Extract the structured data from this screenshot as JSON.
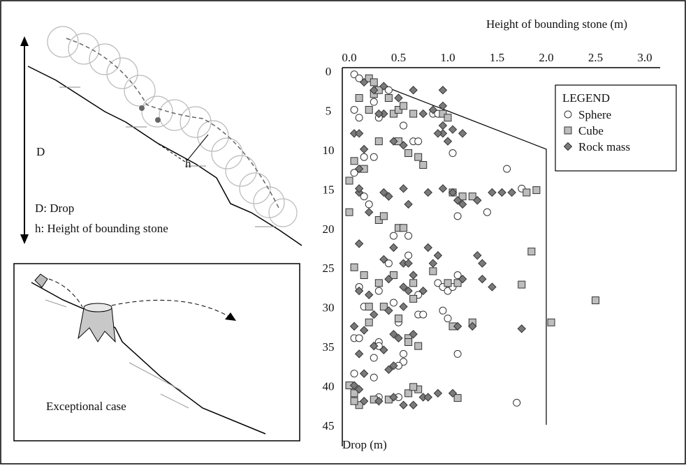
{
  "chart_data": {
    "type": "scatter",
    "x_label": "Height of bounding stone (m)",
    "y_label": "Drop (m)",
    "xlim": [
      0,
      3
    ],
    "ylim": [
      0,
      45
    ],
    "y_inverted": true,
    "xticks": [
      {
        "value": 0,
        "label": "0.0"
      },
      0.5,
      {
        "value": 1,
        "label": "1.0"
      },
      1.5,
      {
        "value": 2,
        "label": "2.0"
      },
      2.5,
      {
        "value": 3,
        "label": "3.0"
      }
    ],
    "yticks": [
      0,
      5,
      10,
      15,
      20,
      25,
      30,
      35,
      40,
      45
    ],
    "legend_title": "LEGEND",
    "envelope": {
      "x": [
        0.35,
        2.0,
        2.0
      ],
      "y": [
        2,
        10,
        45
      ]
    },
    "series": [
      {
        "name": "Sphere",
        "marker": "circle",
        "color": "#ffffff",
        "x": [
          0.05,
          0.1,
          0.05,
          0.1,
          0.25,
          0.3,
          0.4,
          0.55,
          0.65,
          0.7,
          0.85,
          0.9,
          0.05,
          0.15,
          0.25,
          1.05,
          1.6,
          1.75,
          1.4,
          1.1,
          0.15,
          0.2,
          0.45,
          0.6,
          0.4,
          0.6,
          0.1,
          0.3,
          0.15,
          0.45,
          0.5,
          0.7,
          0.75,
          0.9,
          0.95,
          1.0,
          1.05,
          0.7,
          0.95,
          1.0,
          1.1,
          1.1,
          0.05,
          0.1,
          0.3,
          0.3,
          0.6,
          0.55,
          0.55,
          0.5,
          0.25,
          0.05,
          0.3,
          0.5,
          0.6,
          1.7,
          0.25
        ],
        "y": [
          0.5,
          1,
          5,
          6,
          4,
          6,
          2.5,
          7,
          9,
          9,
          5.5,
          5.5,
          13,
          11,
          11,
          10.5,
          12.5,
          15,
          18,
          18.5,
          16,
          17,
          21,
          21,
          24.5,
          23.5,
          27.5,
          28,
          30,
          29.5,
          32,
          31,
          31,
          27,
          27.5,
          28,
          27.5,
          28.5,
          30.5,
          31.5,
          26,
          36,
          34,
          34,
          34.5,
          35,
          34,
          36,
          37,
          37.5,
          39,
          38.5,
          41.5,
          41.5,
          41,
          42.2,
          36.5
        ]
      },
      {
        "name": "Cube",
        "marker": "square",
        "color": "#bdbdbd",
        "x": [
          0.2,
          0.25,
          0.25,
          0.3,
          0.1,
          0.2,
          0.4,
          0.45,
          0.5,
          0.55,
          0.65,
          0.95,
          1.0,
          0.5,
          0.3,
          0.6,
          0.7,
          0.75,
          0.05,
          0.15,
          0.0,
          0.0,
          1.05,
          1.15,
          1.25,
          1.8,
          1.9,
          0.3,
          0.35,
          0.5,
          0.55,
          0.05,
          0.15,
          0.3,
          0.45,
          0.65,
          0.85,
          1.0,
          1.1,
          1.75,
          1.85,
          2.5,
          2.05,
          1.25,
          1.05,
          0.65,
          0.35,
          0.2,
          0.2,
          0.5,
          0.6,
          0.6,
          0.7,
          0.0,
          0.05,
          0.1,
          0.05,
          0.25,
          0.4,
          0.6,
          0.7,
          0.65,
          1.1
        ],
        "y": [
          1,
          1.5,
          3,
          2.5,
          3.5,
          5,
          3.5,
          5.5,
          5,
          4.5,
          5.5,
          5.5,
          6,
          9,
          9,
          10.5,
          11,
          12,
          11.5,
          12.5,
          14,
          18,
          15.5,
          16,
          16,
          15.5,
          15.2,
          19,
          18.5,
          20,
          20,
          25,
          26,
          27,
          26,
          27,
          25.5,
          27,
          27,
          27.2,
          23,
          29.2,
          32,
          32,
          32.5,
          29,
          30,
          30,
          32,
          31.5,
          34,
          34.5,
          35,
          40,
          41,
          42.5,
          42,
          41.8,
          41.8,
          41,
          40.5,
          40.2,
          41.6
        ]
      },
      {
        "name": "Rock mass",
        "marker": "diamond",
        "color": "#7a7a7a",
        "x": [
          0.15,
          0.25,
          0.35,
          0.65,
          0.95,
          0.5,
          0.35,
          0.3,
          0.75,
          0.85,
          0.95,
          0.05,
          0.1,
          0.45,
          0.55,
          0.95,
          1.0,
          0.95,
          1.05,
          0.9,
          1.15,
          0.15,
          0.1,
          0.1,
          0.1,
          0.35,
          0.4,
          0.6,
          0.55,
          0.8,
          0.95,
          1.05,
          1.1,
          1.3,
          1.45,
          1.55,
          1.65,
          1.15,
          0.2,
          0.1,
          0.45,
          0.35,
          0.55,
          0.6,
          0.8,
          0.9,
          0.85,
          1.3,
          1.35,
          1.35,
          1.45,
          1.15,
          0.65,
          0.1,
          0.2,
          0.4,
          0.55,
          0.6,
          0.75,
          0.25,
          0.4,
          0.55,
          1.1,
          1.25,
          1.75,
          0.05,
          0.15,
          0.25,
          0.35,
          0.45,
          0.5,
          0.65,
          0.1,
          0.45,
          0.4,
          0.15,
          0.1,
          0.05,
          0.15,
          0.3,
          0.45,
          0.55,
          0.75,
          0.8,
          0.9,
          1.05,
          0.65
        ],
        "y": [
          1.5,
          2.5,
          2,
          2.5,
          2.5,
          3.5,
          5.5,
          5.5,
          5.5,
          5,
          4.5,
          8,
          8,
          9,
          9.5,
          8,
          9,
          7,
          7.5,
          8,
          8,
          10,
          12.5,
          15.5,
          15,
          15.5,
          16,
          17,
          15,
          15.5,
          15,
          15.5,
          16.5,
          16.5,
          15.5,
          15.5,
          15.5,
          17,
          18,
          22,
          22.5,
          24,
          24.5,
          24.5,
          22.5,
          23.5,
          24.5,
          23.5,
          24.5,
          26.5,
          27.5,
          26.5,
          26,
          28,
          28.5,
          26.5,
          27.5,
          28,
          28,
          31,
          30.5,
          30,
          32.5,
          32.5,
          32.8,
          32.5,
          33,
          35,
          35.5,
          33.5,
          34,
          33.5,
          36,
          37.5,
          38,
          38.5,
          40.5,
          40,
          42,
          42,
          41.5,
          42.5,
          41.5,
          41.5,
          41,
          41,
          42.5
        ]
      }
    ]
  },
  "diagram": {
    "d_label": "D",
    "d_legend": "D: Drop",
    "h_legend": "h: Height of bounding stone",
    "h_label": "h",
    "inset_caption": "Exceptional case"
  }
}
